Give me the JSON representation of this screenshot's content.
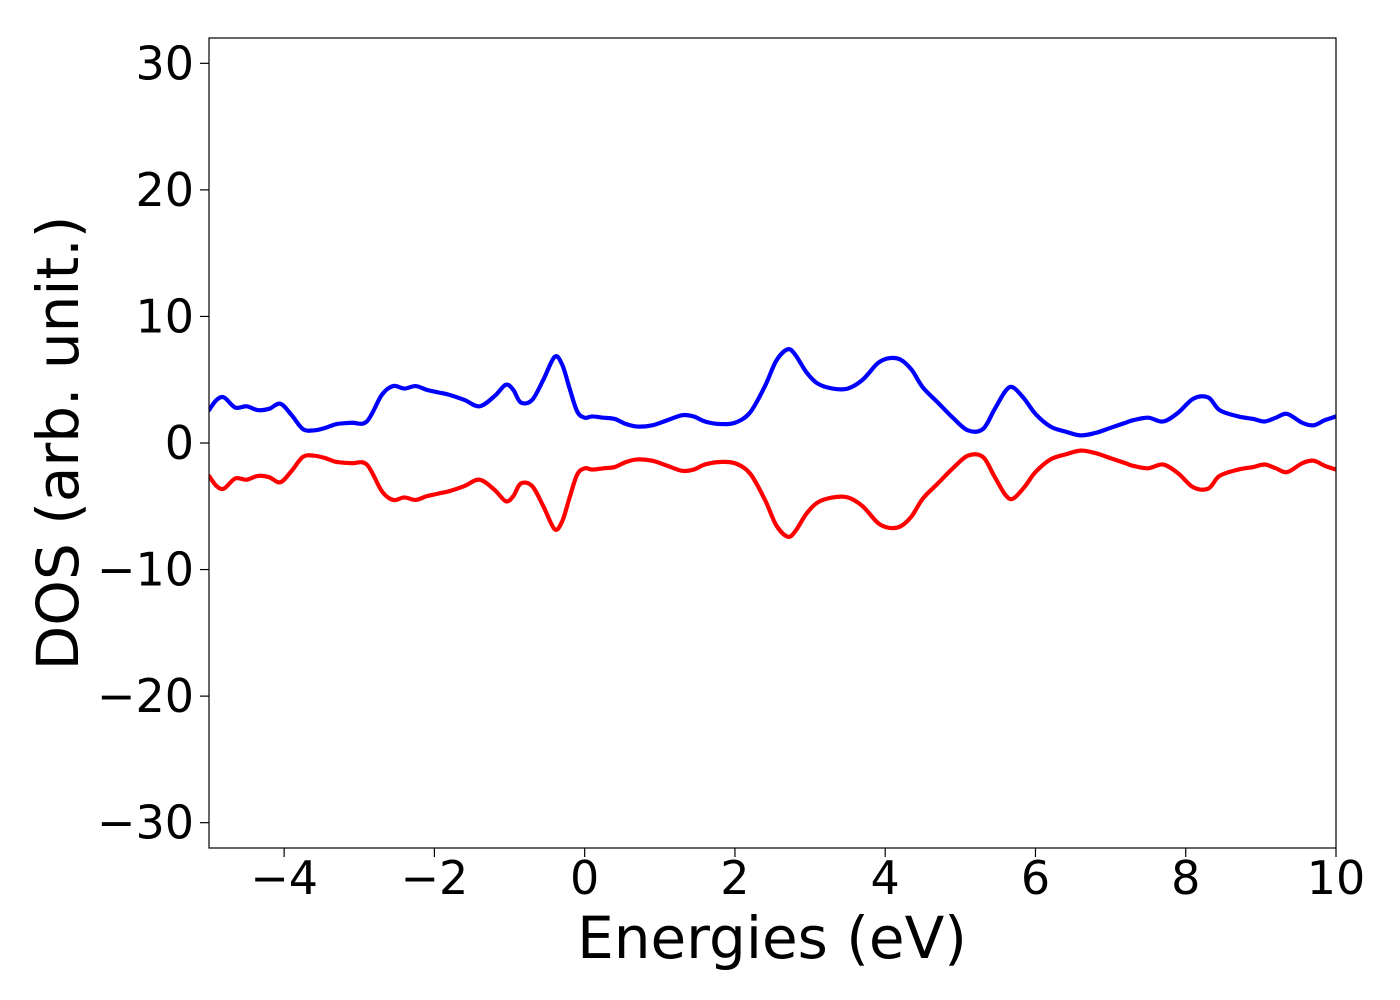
{
  "chart_data": {
    "type": "line",
    "title": "",
    "xlabel": "Energies (eV)",
    "ylabel": "DOS (arb. unit.)",
    "xlim": [
      -5,
      10
    ],
    "ylim": [
      -32,
      32
    ],
    "x_ticks": [
      -4,
      -2,
      0,
      2,
      4,
      6,
      8,
      10
    ],
    "x_tick_labels": [
      "−4",
      "−2",
      "0",
      "2",
      "4",
      "6",
      "8",
      "10"
    ],
    "y_ticks": [
      -30,
      -20,
      -10,
      0,
      10,
      20,
      30
    ],
    "y_tick_labels": [
      "−30",
      "−20",
      "−10",
      "0",
      "10",
      "20",
      "30"
    ],
    "grid": false,
    "legend": "none",
    "series": [
      {
        "color": "#0000ff",
        "x": [
          -5.0,
          -4.9,
          -4.8,
          -4.65,
          -4.5,
          -4.35,
          -4.2,
          -4.05,
          -3.9,
          -3.75,
          -3.6,
          -3.45,
          -3.3,
          -3.1,
          -2.9,
          -2.7,
          -2.55,
          -2.4,
          -2.25,
          -2.1,
          -1.95,
          -1.8,
          -1.6,
          -1.4,
          -1.2,
          -1.05,
          -0.95,
          -0.85,
          -0.7,
          -0.55,
          -0.4,
          -0.3,
          -0.2,
          -0.1,
          0.0,
          0.1,
          0.25,
          0.4,
          0.55,
          0.7,
          0.9,
          1.1,
          1.3,
          1.45,
          1.6,
          1.8,
          2.0,
          2.2,
          2.4,
          2.55,
          2.7,
          2.8,
          2.95,
          3.1,
          3.3,
          3.5,
          3.7,
          3.9,
          4.05,
          4.2,
          4.35,
          4.5,
          4.7,
          4.9,
          5.1,
          5.3,
          5.45,
          5.6,
          5.7,
          5.85,
          6.0,
          6.2,
          6.4,
          6.6,
          6.8,
          7.0,
          7.2,
          7.3,
          7.5,
          7.7,
          7.9,
          8.1,
          8.3,
          8.45,
          8.7,
          8.9,
          9.05,
          9.2,
          9.35,
          9.55,
          9.7,
          9.85,
          10.0
        ],
        "y": [
          2.6,
          3.4,
          3.6,
          2.8,
          2.9,
          2.6,
          2.7,
          3.1,
          2.2,
          1.1,
          1.0,
          1.2,
          1.5,
          1.6,
          1.7,
          3.8,
          4.5,
          4.3,
          4.5,
          4.2,
          4.0,
          3.8,
          3.4,
          2.9,
          3.7,
          4.6,
          4.2,
          3.2,
          3.4,
          5.0,
          6.8,
          6.2,
          4.3,
          2.5,
          2.0,
          2.1,
          2.0,
          1.9,
          1.5,
          1.3,
          1.4,
          1.8,
          2.2,
          2.1,
          1.7,
          1.5,
          1.6,
          2.4,
          4.5,
          6.5,
          7.4,
          7.0,
          5.6,
          4.7,
          4.3,
          4.3,
          5.0,
          6.3,
          6.7,
          6.6,
          5.8,
          4.4,
          3.2,
          2.0,
          1.0,
          1.1,
          2.6,
          4.1,
          4.4,
          3.5,
          2.3,
          1.3,
          0.9,
          0.6,
          0.8,
          1.2,
          1.6,
          1.8,
          2.0,
          1.7,
          2.4,
          3.5,
          3.6,
          2.6,
          2.1,
          1.9,
          1.7,
          2.0,
          2.3,
          1.6,
          1.4,
          1.8,
          2.1
        ]
      },
      {
        "color": "#ff0000",
        "x": [
          -5.0,
          -4.9,
          -4.8,
          -4.65,
          -4.5,
          -4.35,
          -4.2,
          -4.05,
          -3.9,
          -3.75,
          -3.6,
          -3.45,
          -3.3,
          -3.1,
          -2.9,
          -2.7,
          -2.55,
          -2.4,
          -2.25,
          -2.1,
          -1.95,
          -1.8,
          -1.6,
          -1.4,
          -1.2,
          -1.05,
          -0.95,
          -0.85,
          -0.7,
          -0.55,
          -0.4,
          -0.3,
          -0.2,
          -0.1,
          0.0,
          0.1,
          0.25,
          0.4,
          0.55,
          0.7,
          0.9,
          1.1,
          1.3,
          1.45,
          1.6,
          1.8,
          2.0,
          2.2,
          2.4,
          2.55,
          2.7,
          2.8,
          2.95,
          3.1,
          3.3,
          3.5,
          3.7,
          3.9,
          4.05,
          4.2,
          4.35,
          4.5,
          4.7,
          4.9,
          5.1,
          5.3,
          5.45,
          5.6,
          5.7,
          5.85,
          6.0,
          6.2,
          6.4,
          6.6,
          6.8,
          7.0,
          7.2,
          7.3,
          7.5,
          7.7,
          7.9,
          8.1,
          8.3,
          8.45,
          8.7,
          8.9,
          9.05,
          9.2,
          9.35,
          9.55,
          9.7,
          9.85,
          10.0
        ],
        "y": [
          -2.6,
          -3.4,
          -3.6,
          -2.8,
          -2.9,
          -2.6,
          -2.7,
          -3.1,
          -2.2,
          -1.1,
          -1.0,
          -1.2,
          -1.5,
          -1.6,
          -1.7,
          -3.8,
          -4.5,
          -4.3,
          -4.5,
          -4.2,
          -4.0,
          -3.8,
          -3.4,
          -2.9,
          -3.7,
          -4.6,
          -4.2,
          -3.2,
          -3.4,
          -5.0,
          -6.8,
          -6.2,
          -4.3,
          -2.5,
          -2.0,
          -2.1,
          -2.0,
          -1.9,
          -1.5,
          -1.3,
          -1.4,
          -1.8,
          -2.2,
          -2.1,
          -1.7,
          -1.5,
          -1.6,
          -2.4,
          -4.5,
          -6.5,
          -7.4,
          -7.0,
          -5.6,
          -4.7,
          -4.3,
          -4.3,
          -5.0,
          -6.3,
          -6.7,
          -6.6,
          -5.8,
          -4.4,
          -3.2,
          -2.0,
          -1.0,
          -1.1,
          -2.6,
          -4.1,
          -4.4,
          -3.5,
          -2.3,
          -1.3,
          -0.9,
          -0.6,
          -0.8,
          -1.2,
          -1.6,
          -1.8,
          -2.0,
          -1.7,
          -2.4,
          -3.5,
          -3.6,
          -2.6,
          -2.1,
          -1.9,
          -1.7,
          -2.0,
          -2.3,
          -1.6,
          -1.4,
          -1.8,
          -2.1
        ]
      }
    ]
  }
}
